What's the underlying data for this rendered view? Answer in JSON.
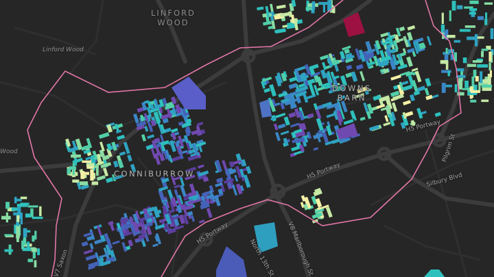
{
  "map": {
    "labels": {
      "linford_wood_caps": "LINFORD\nWOOD",
      "linford_wood": "Linford Wood",
      "wood_left": "Wood",
      "downs_barn": "DOWNS\nBARN",
      "conniburrow": "CONNIBURROW"
    },
    "roads": {
      "h5_portway_right": "H5 Portway",
      "h5_portway_mid": "H5 Portway",
      "h5_portway_low": "H5 Portway",
      "pilgrim_st": "Pilgrim St",
      "silbury_blvd": "Silbury Blvd",
      "v8_marlborough": "V8 Marlborough St",
      "v7_saxon": "V7 Saxon",
      "north_13th": "North 13th St"
    },
    "colors": {
      "background": "#262626",
      "road": "#3a3a3a",
      "boundary": "#e377a8",
      "buildings_low": "#3b86c6",
      "buildings_high": "#f4f0a6"
    }
  }
}
